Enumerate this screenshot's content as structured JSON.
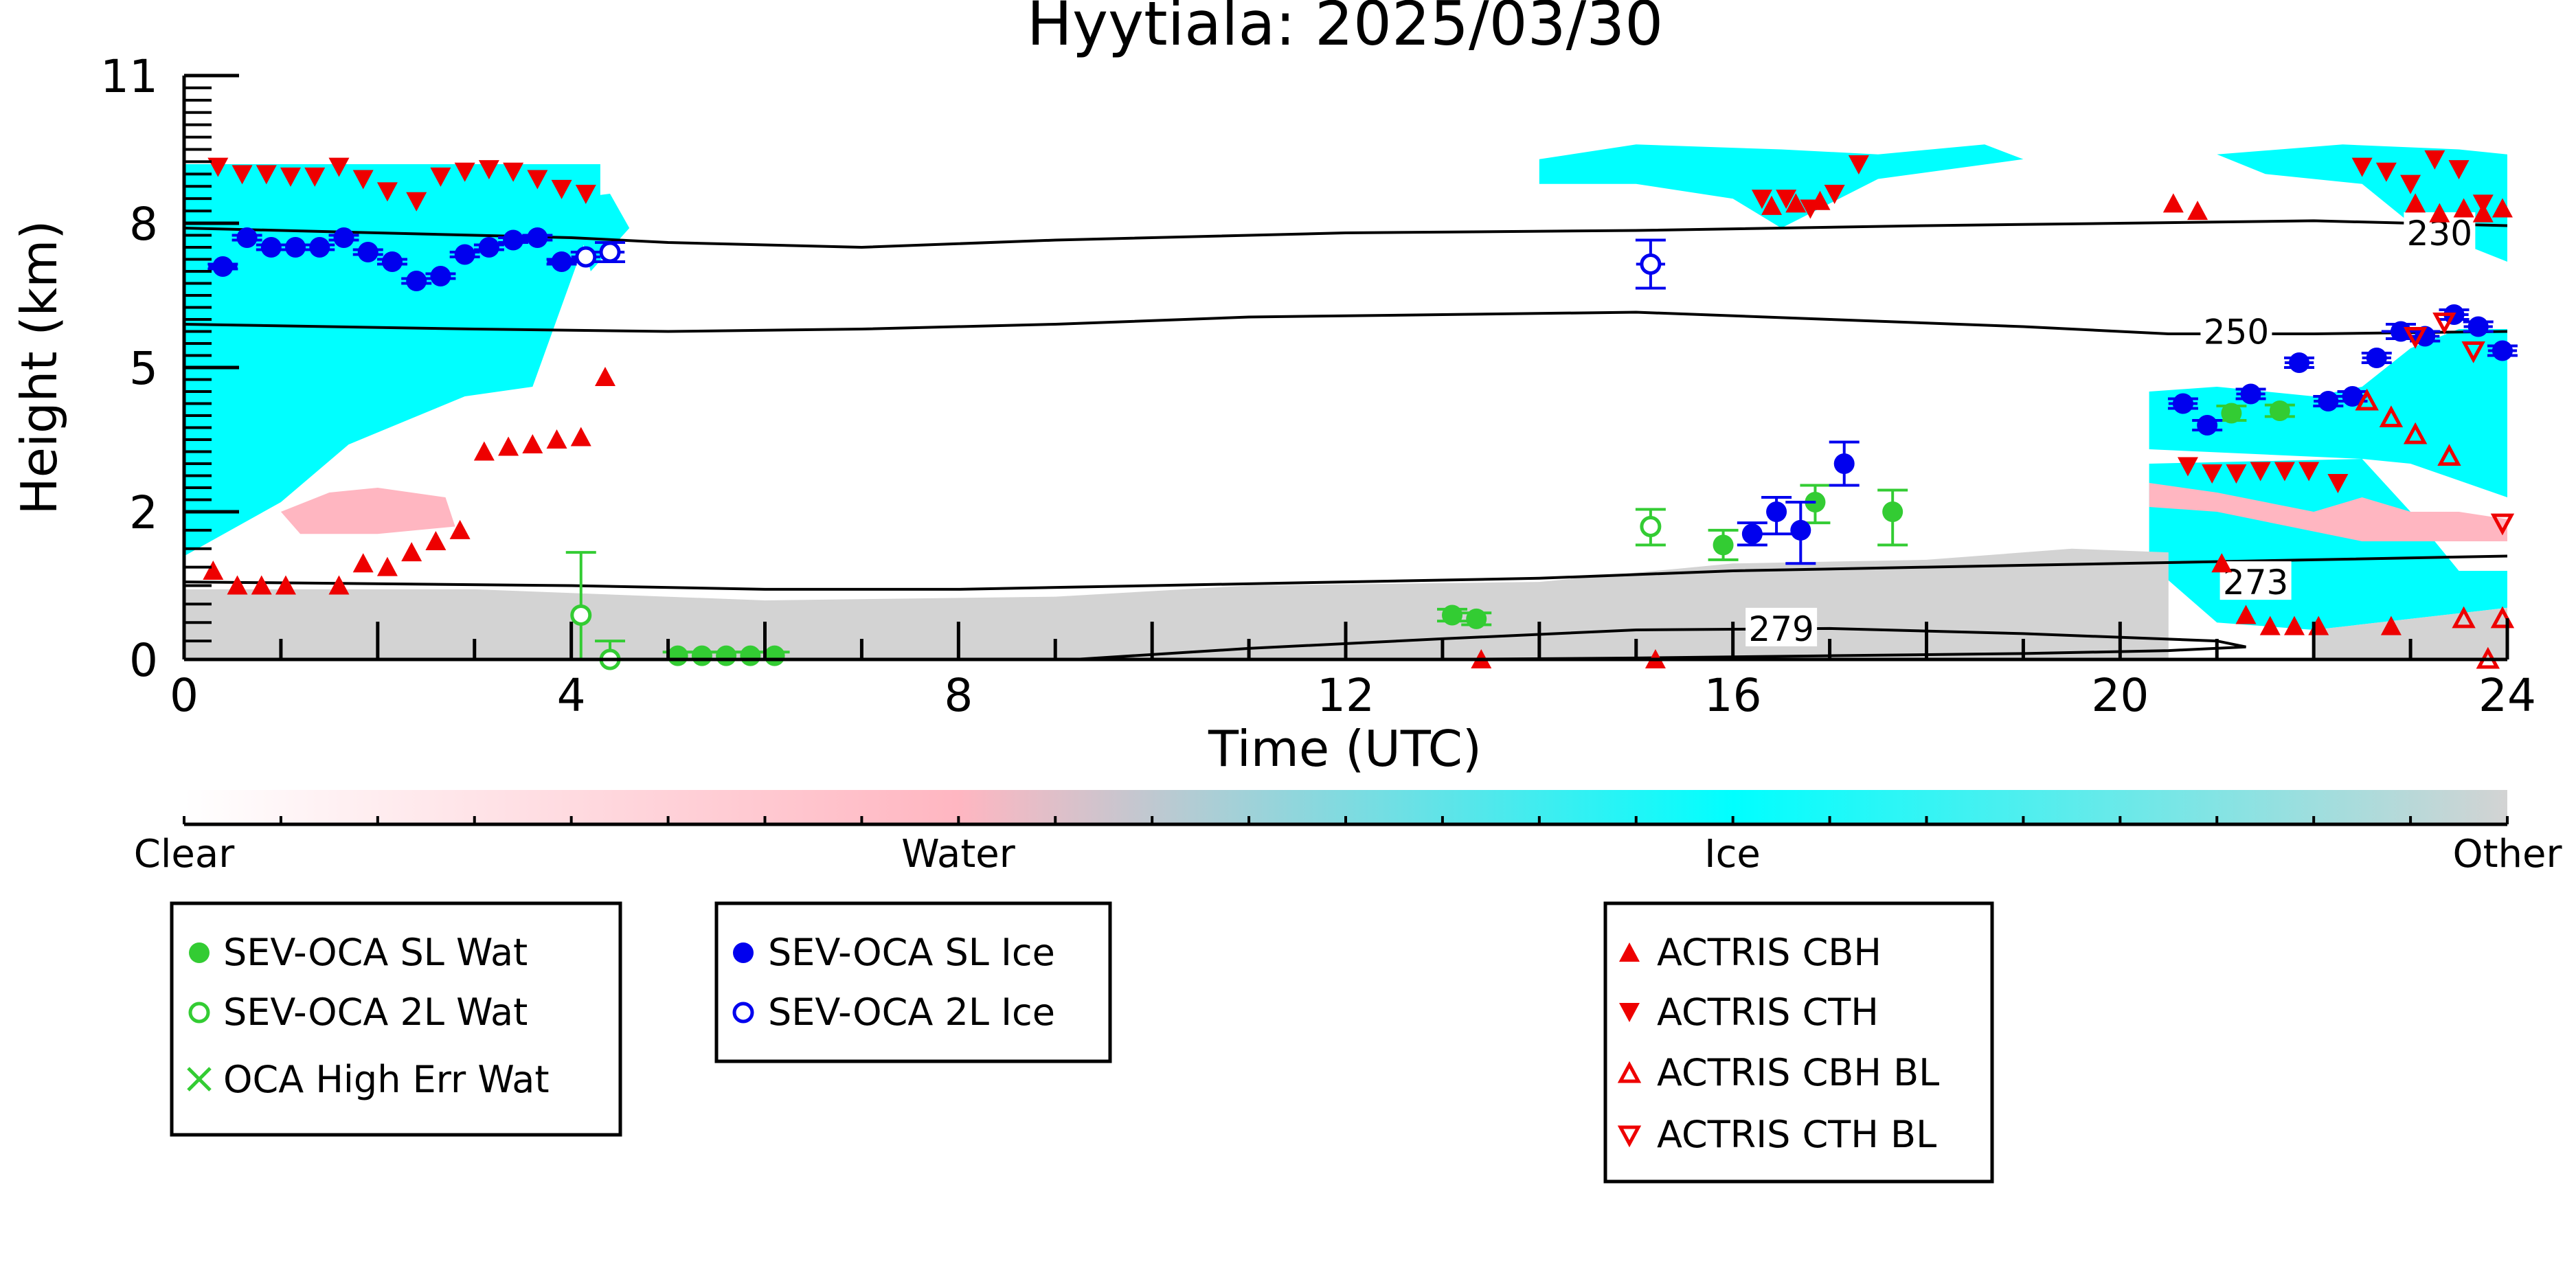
{
  "chart_data": {
    "type": "scatter",
    "title": "Hyytiala: 2025/03/30",
    "xlabel": "Time (UTC)",
    "ylabel": "Height (km)",
    "xlim": [
      0,
      24
    ],
    "ylim": [
      0,
      11
    ],
    "xticks": [
      0,
      4,
      8,
      12,
      16,
      20,
      24
    ],
    "xtick_labels": [
      "0",
      "4",
      "8",
      "12",
      "16",
      "20",
      "24"
    ],
    "yticks": [
      0,
      2,
      5,
      8,
      11
    ],
    "ytick_labels": [
      "0",
      "2",
      "5",
      "8",
      "11"
    ],
    "y_scale": "non-linear",
    "colors": {
      "clear": "#ffffff",
      "water": "#ffb6c1",
      "ice": "#00ffff",
      "other": "#d3d3d3",
      "sev_wat": "#33cc33",
      "sev_ice": "#0000ee",
      "actris": "#ee0000",
      "isotherm": "#000000"
    },
    "colorbar": {
      "labels": [
        "Clear",
        "Water",
        "Ice",
        "Other"
      ]
    },
    "isotherms": [
      {
        "label": "230",
        "label_x": 23.3,
        "label_y": 7.8,
        "points": [
          [
            0,
            7.9
          ],
          [
            2,
            7.8
          ],
          [
            4,
            7.7
          ],
          [
            5,
            7.6
          ],
          [
            7,
            7.5
          ],
          [
            9,
            7.65
          ],
          [
            12,
            7.8
          ],
          [
            15,
            7.85
          ],
          [
            18,
            7.95
          ],
          [
            20,
            8.0
          ],
          [
            22,
            8.05
          ],
          [
            24,
            7.95
          ]
        ]
      },
      {
        "label": "250",
        "label_x": 21.2,
        "label_y": 5.75,
        "points": [
          [
            0,
            5.9
          ],
          [
            3,
            5.8
          ],
          [
            5,
            5.75
          ],
          [
            7,
            5.8
          ],
          [
            9,
            5.9
          ],
          [
            11,
            6.05
          ],
          [
            13,
            6.1
          ],
          [
            15,
            6.15
          ],
          [
            17,
            6.0
          ],
          [
            19,
            5.85
          ],
          [
            20.5,
            5.7
          ],
          [
            22,
            5.7
          ],
          [
            24,
            5.75
          ]
        ]
      },
      {
        "label": "273",
        "label_x": 21.4,
        "label_y": 1.05,
        "points": [
          [
            0,
            1.05
          ],
          [
            4,
            1.0
          ],
          [
            6,
            0.95
          ],
          [
            8,
            0.95
          ],
          [
            10,
            1.0
          ],
          [
            12,
            1.05
          ],
          [
            14,
            1.1
          ],
          [
            16,
            1.2
          ],
          [
            18,
            1.25
          ],
          [
            20,
            1.3
          ],
          [
            22,
            1.35
          ],
          [
            24,
            1.4
          ]
        ]
      },
      {
        "label": "279",
        "label_x": 16.5,
        "label_y": 0.42,
        "points": [
          [
            9.2,
            0.0
          ],
          [
            11,
            0.15
          ],
          [
            13,
            0.28
          ],
          [
            15,
            0.4
          ],
          [
            17,
            0.42
          ],
          [
            19,
            0.35
          ],
          [
            21,
            0.25
          ],
          [
            21.3,
            0.17
          ],
          [
            20.5,
            0.12
          ],
          [
            19,
            0.08
          ],
          [
            17,
            0.05
          ],
          [
            15,
            0.02
          ],
          [
            13,
            0.0
          ]
        ]
      }
    ],
    "series": [
      {
        "name": "SEV-OCA SL Wat",
        "color": "#33cc33",
        "marker": "circle-filled",
        "x": [
          5.1,
          5.35,
          5.6,
          5.85,
          6.1,
          13.1,
          13.35,
          15.9,
          16.85,
          17.65,
          21.15,
          21.65
        ],
        "y": [
          0.05,
          0.05,
          0.05,
          0.05,
          0.05,
          0.6,
          0.55,
          1.55,
          2.2,
          2.0,
          4.05,
          4.1
        ],
        "yerr": [
          0.05,
          0.05,
          0.05,
          0.05,
          0.05,
          0.08,
          0.08,
          0.2,
          0.35,
          0.45,
          0.15,
          0.12
        ]
      },
      {
        "name": "SEV-OCA 2L Wat",
        "color": "#33cc33",
        "marker": "circle-open",
        "x": [
          4.1,
          4.4,
          15.15
        ],
        "y": [
          0.6,
          0.0,
          1.8
        ],
        "yerr": [
          0.85,
          0.25,
          0.25
        ]
      },
      {
        "name": "OCA High Err Wat",
        "color": "#33cc33",
        "marker": "x",
        "x": [],
        "y": []
      },
      {
        "name": "SEV-OCA SL Ice",
        "color": "#0000ee",
        "marker": "circle-filled",
        "x": [
          0.4,
          0.65,
          0.9,
          1.15,
          1.4,
          1.65,
          1.9,
          2.15,
          2.4,
          2.65,
          2.9,
          3.15,
          3.4,
          3.65,
          3.9,
          16.2,
          16.45,
          16.7,
          17.15,
          20.65,
          20.9,
          21.35,
          21.85,
          22.15,
          22.4,
          22.65,
          22.9,
          23.15,
          23.45,
          23.7,
          23.95
        ],
        "y": [
          7.1,
          7.7,
          7.5,
          7.5,
          7.5,
          7.7,
          7.4,
          7.2,
          6.8,
          6.9,
          7.35,
          7.5,
          7.65,
          7.7,
          7.2,
          1.7,
          2.0,
          1.75,
          3.0,
          4.25,
          3.8,
          4.45,
          5.1,
          4.3,
          4.4,
          5.2,
          5.75,
          5.65,
          6.1,
          5.85,
          5.35
        ],
        "yerr": [
          0.05,
          0.05,
          0.05,
          0.05,
          0.05,
          0.05,
          0.05,
          0.05,
          0.05,
          0.05,
          0.05,
          0.05,
          0.05,
          0.05,
          0.05,
          0.15,
          0.3,
          0.45,
          0.45,
          0.1,
          0.1,
          0.1,
          0.1,
          0.1,
          0.1,
          0.1,
          0.15,
          0.1,
          0.1,
          0.1,
          0.1
        ],
        "xerr": [
          0.15,
          0.1,
          0.1,
          0.1,
          0.1,
          0.1,
          0.1,
          0.1,
          0.1,
          0.1,
          0.1,
          0.1,
          0.1,
          0.1,
          0.15,
          0.1,
          0.1,
          0.1,
          0.1,
          0.15,
          0.1,
          0.15,
          0.15,
          0.15,
          0.15,
          0.15,
          0.2,
          0.15,
          0.15,
          0.15,
          0.15
        ]
      },
      {
        "name": "SEV-OCA 2L Ice",
        "color": "#0000ee",
        "marker": "circle-open",
        "x": [
          4.15,
          4.4,
          15.15
        ],
        "y": [
          7.3,
          7.4,
          7.15
        ],
        "yerr": [
          0.1,
          0.2,
          0.5
        ],
        "xerr": [
          0.15,
          0.15,
          0.15
        ]
      },
      {
        "name": "ACTRIS CBH",
        "color": "#ee0000",
        "marker": "triangle-up-filled",
        "x": [
          0.3,
          0.55,
          0.8,
          1.05,
          1.6,
          1.85,
          2.1,
          2.35,
          2.6,
          2.85,
          3.1,
          3.35,
          3.6,
          3.85,
          4.1,
          4.35,
          13.4,
          15.2,
          16.4,
          16.65,
          16.9,
          20.55,
          20.8,
          21.05,
          21.3,
          21.55,
          21.8,
          22.05,
          22.8,
          23.05,
          23.3,
          23.55,
          23.75,
          23.95
        ],
        "y": [
          1.2,
          1.0,
          1.0,
          1.0,
          1.0,
          1.3,
          1.25,
          1.45,
          1.6,
          1.75,
          3.25,
          3.35,
          3.4,
          3.5,
          3.55,
          4.8,
          0.0,
          0.0,
          8.35,
          8.4,
          8.45,
          8.4,
          8.25,
          1.3,
          0.6,
          0.45,
          0.45,
          0.45,
          0.45,
          8.4,
          8.2,
          8.3,
          8.2,
          8.3
        ],
        "note": "approximate positions read from plot"
      },
      {
        "name": "ACTRIS CTH",
        "color": "#ee0000",
        "marker": "triangle-down-filled",
        "x": [
          0.35,
          0.6,
          0.85,
          1.1,
          1.35,
          1.6,
          1.85,
          2.1,
          2.4,
          2.65,
          2.9,
          3.15,
          3.4,
          3.65,
          3.9,
          4.15,
          16.3,
          16.55,
          16.8,
          17.05,
          17.3,
          20.7,
          20.95,
          21.2,
          21.45,
          21.7,
          21.95,
          22.25,
          22.5,
          22.75,
          23.0,
          23.25,
          23.5,
          23.75
        ],
        "y": [
          9.15,
          9.0,
          9.0,
          8.95,
          8.95,
          9.15,
          8.9,
          8.65,
          8.45,
          8.95,
          9.05,
          9.1,
          9.05,
          8.9,
          8.7,
          8.6,
          8.5,
          8.5,
          8.3,
          8.6,
          9.2,
          2.95,
          2.8,
          2.8,
          2.85,
          2.85,
          2.85,
          2.6,
          9.15,
          9.05,
          8.8,
          9.3,
          9.1,
          8.4
        ],
        "note": "approximate positions read from plot"
      },
      {
        "name": "ACTRIS CBH BL",
        "color": "#ee0000",
        "marker": "triangle-up-open",
        "x": [
          22.55,
          22.8,
          23.05,
          23.4,
          23.55,
          23.8,
          23.95
        ],
        "y": [
          4.3,
          3.95,
          3.6,
          3.15,
          0.55,
          0.0,
          0.55
        ],
        "note": "approximate positions read from plot"
      },
      {
        "name": "ACTRIS CTH BL",
        "color": "#ee0000",
        "marker": "triangle-down-open",
        "x": [
          23.05,
          23.35,
          23.65,
          23.95
        ],
        "y": [
          5.65,
          5.95,
          5.35,
          1.85
        ],
        "note": "approximate positions read from plot"
      }
    ],
    "cloud_regions": [
      {
        "phase": "ice",
        "polygon": [
          [
            0.0,
            9.2
          ],
          [
            4.3,
            9.2
          ],
          [
            4.3,
            8.5
          ],
          [
            3.6,
            4.6
          ],
          [
            2.9,
            4.4
          ],
          [
            2.3,
            3.9
          ],
          [
            1.7,
            3.4
          ],
          [
            1.0,
            2.2
          ],
          [
            0.0,
            1.4
          ]
        ]
      },
      {
        "phase": "ice",
        "polygon": [
          [
            4.0,
            8.5
          ],
          [
            4.4,
            8.6
          ],
          [
            4.6,
            7.9
          ],
          [
            4.2,
            7.0
          ]
        ]
      },
      {
        "phase": "ice",
        "polygon": [
          [
            14.0,
            9.3
          ],
          [
            15.0,
            9.6
          ],
          [
            16.5,
            9.5
          ],
          [
            17.5,
            9.4
          ],
          [
            18.6,
            9.6
          ],
          [
            19.0,
            9.3
          ],
          [
            17.5,
            8.9
          ],
          [
            16.5,
            7.9
          ],
          [
            16.0,
            8.5
          ],
          [
            15.0,
            8.8
          ],
          [
            14.0,
            8.8
          ]
        ]
      },
      {
        "phase": "ice",
        "polygon": [
          [
            21.0,
            9.4
          ],
          [
            22.3,
            9.6
          ],
          [
            23.5,
            9.5
          ],
          [
            24.0,
            9.4
          ],
          [
            24.0,
            7.2
          ],
          [
            23.0,
            8.0
          ],
          [
            22.5,
            8.8
          ],
          [
            21.5,
            9.0
          ]
        ]
      },
      {
        "phase": "ice",
        "polygon": [
          [
            20.3,
            4.5
          ],
          [
            21.0,
            4.6
          ],
          [
            22.0,
            4.4
          ],
          [
            22.5,
            4.6
          ],
          [
            23.0,
            5.4
          ],
          [
            23.5,
            5.8
          ],
          [
            24.0,
            5.8
          ],
          [
            24.0,
            2.3
          ],
          [
            23.0,
            3.0
          ],
          [
            22.5,
            3.1
          ],
          [
            20.3,
            3.3
          ]
        ]
      },
      {
        "phase": "ice",
        "polygon": [
          [
            20.3,
            3.0
          ],
          [
            22.5,
            3.1
          ],
          [
            23.0,
            2.0
          ],
          [
            23.5,
            1.2
          ],
          [
            24.0,
            1.2
          ],
          [
            24.0,
            0.7
          ],
          [
            22.0,
            0.4
          ],
          [
            21.0,
            0.5
          ],
          [
            20.3,
            1.3
          ]
        ]
      },
      {
        "phase": "water",
        "polygon": [
          [
            1.0,
            2.0
          ],
          [
            1.5,
            2.4
          ],
          [
            2.0,
            2.5
          ],
          [
            2.7,
            2.3
          ],
          [
            2.8,
            1.8
          ],
          [
            2.0,
            1.7
          ],
          [
            1.2,
            1.7
          ]
        ]
      },
      {
        "phase": "water",
        "polygon": [
          [
            20.3,
            2.6
          ],
          [
            21.0,
            2.4
          ],
          [
            22.0,
            2.0
          ],
          [
            22.5,
            2.3
          ],
          [
            23.0,
            2.0
          ],
          [
            23.5,
            2.0
          ],
          [
            24.0,
            1.9
          ],
          [
            24.0,
            1.6
          ],
          [
            22.5,
            1.6
          ],
          [
            21.0,
            2.0
          ],
          [
            20.3,
            2.1
          ]
        ]
      },
      {
        "phase": "other",
        "polygon": [
          [
            0.0,
            0.95
          ],
          [
            3.0,
            0.95
          ],
          [
            6.0,
            0.8
          ],
          [
            9.0,
            0.85
          ],
          [
            11.0,
            1.0
          ],
          [
            14.0,
            1.05
          ],
          [
            16.0,
            1.3
          ],
          [
            18.0,
            1.35
          ],
          [
            19.5,
            1.5
          ],
          [
            20.5,
            1.45
          ],
          [
            20.5,
            0.0
          ],
          [
            0.0,
            0.0
          ]
        ]
      },
      {
        "phase": "other",
        "polygon": [
          [
            22.0,
            0.4
          ],
          [
            24.0,
            0.7
          ],
          [
            24.0,
            0.0
          ],
          [
            22.0,
            0.0
          ]
        ]
      }
    ],
    "legend": [
      [
        "SEV-OCA SL Wat",
        "SEV-OCA 2L Wat",
        "OCA High Err Wat"
      ],
      [
        "SEV-OCA SL Ice",
        "SEV-OCA 2L Ice"
      ],
      [
        "ACTRIS CBH",
        "ACTRIS CTH",
        "ACTRIS CBH BL",
        "ACTRIS CTH BL"
      ]
    ],
    "legend_placement": "below-plot",
    "grid": false
  }
}
